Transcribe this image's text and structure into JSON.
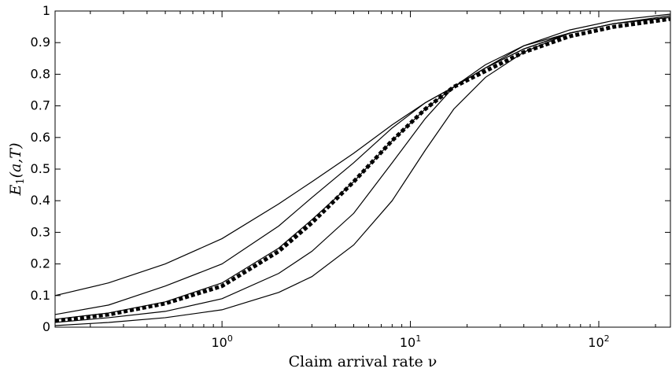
{
  "chart_data": {
    "type": "line",
    "title": "",
    "xlabel": "Claim arrival rate ν",
    "ylabel": "E₁(a,T)",
    "ylabel_parts": {
      "main": "E",
      "sub": "1",
      "args": "(a,T)"
    },
    "x_scale": "log",
    "xlim": [
      0.13,
      240
    ],
    "ylim": [
      0,
      1
    ],
    "grid": false,
    "legend": "none",
    "x_ticks": [
      {
        "value": 1,
        "base": "10",
        "exp": "0"
      },
      {
        "value": 10,
        "base": "10",
        "exp": "1"
      },
      {
        "value": 100,
        "base": "10",
        "exp": "2"
      }
    ],
    "y_ticks": [
      "0",
      "0.1",
      "0.2",
      "0.3",
      "0.4",
      "0.5",
      "0.6",
      "0.7",
      "0.8",
      "0.9",
      "1"
    ],
    "x": [
      0.13,
      0.25,
      0.5,
      1,
      2,
      3,
      5,
      8,
      12,
      17,
      25,
      40,
      70,
      120,
      240
    ],
    "series": [
      {
        "style": "solid",
        "values": [
          0.1,
          0.14,
          0.2,
          0.28,
          0.39,
          0.46,
          0.55,
          0.64,
          0.71,
          0.76,
          0.82,
          0.88,
          0.93,
          0.96,
          0.985
        ]
      },
      {
        "style": "solid",
        "values": [
          0.04,
          0.07,
          0.13,
          0.2,
          0.32,
          0.41,
          0.52,
          0.63,
          0.71,
          0.76,
          0.82,
          0.89,
          0.94,
          0.97,
          0.99
        ]
      },
      {
        "style": "solid",
        "values": [
          0.025,
          0.045,
          0.08,
          0.14,
          0.25,
          0.34,
          0.46,
          0.59,
          0.69,
          0.76,
          0.82,
          0.88,
          0.93,
          0.96,
          0.98
        ]
      },
      {
        "style": "dotted-thick",
        "values": [
          0.02,
          0.04,
          0.075,
          0.13,
          0.24,
          0.33,
          0.46,
          0.59,
          0.69,
          0.76,
          0.81,
          0.87,
          0.92,
          0.95,
          0.975
        ]
      },
      {
        "style": "solid",
        "values": [
          0.015,
          0.03,
          0.05,
          0.09,
          0.17,
          0.24,
          0.36,
          0.52,
          0.66,
          0.76,
          0.83,
          0.89,
          0.93,
          0.96,
          0.98
        ]
      },
      {
        "style": "solid",
        "values": [
          0.005,
          0.015,
          0.03,
          0.055,
          0.11,
          0.16,
          0.26,
          0.4,
          0.56,
          0.69,
          0.79,
          0.87,
          0.93,
          0.96,
          0.98
        ]
      }
    ]
  }
}
